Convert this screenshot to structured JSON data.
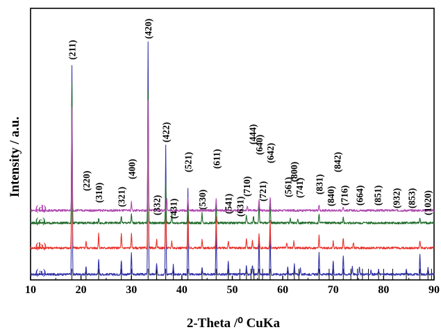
{
  "chart_data": {
    "type": "line",
    "title": "",
    "xlabel": "2-Theta /⁰ CuKa",
    "ylabel": "Intensity / a.u.",
    "xlim": [
      10,
      90
    ],
    "xticks": [
      "10",
      "20",
      "30",
      "40",
      "50",
      "60",
      "70",
      "80",
      "90"
    ],
    "yticks": false,
    "grid": false,
    "series": [
      {
        "name": "(a)",
        "color": "#3333a8",
        "offset": 0,
        "peaks": [
          [
            18.2,
            300
          ],
          [
            21.0,
            10
          ],
          [
            23.5,
            22
          ],
          [
            28.0,
            20
          ],
          [
            30.0,
            30
          ],
          [
            33.3,
            335
          ],
          [
            35.0,
            15
          ],
          [
            36.8,
            185
          ],
          [
            38.3,
            14
          ],
          [
            41.2,
            125
          ],
          [
            44.0,
            10
          ],
          [
            46.8,
            68
          ],
          [
            49.2,
            20
          ],
          [
            52.8,
            12
          ],
          [
            54.0,
            14
          ],
          [
            55.3,
            50
          ],
          [
            57.5,
            62
          ],
          [
            61.0,
            10
          ],
          [
            62.3,
            14
          ],
          [
            63.5,
            8
          ],
          [
            67.2,
            32
          ],
          [
            70.0,
            20
          ],
          [
            72.0,
            28
          ],
          [
            73.8,
            12
          ],
          [
            75.2,
            10
          ],
          [
            77.5,
            6
          ],
          [
            79.0,
            8
          ],
          [
            84.5,
            6
          ],
          [
            87.2,
            28
          ],
          [
            88.8,
            10
          ]
        ]
      },
      {
        "name": "(b)",
        "color": "#e8302a",
        "offset": 38,
        "peaks": [
          [
            18.2,
            210
          ],
          [
            21.0,
            10
          ],
          [
            23.5,
            20
          ],
          [
            28.0,
            20
          ],
          [
            30.0,
            20
          ],
          [
            33.3,
            210
          ],
          [
            35.0,
            12
          ],
          [
            36.8,
            90
          ],
          [
            38.0,
            10
          ],
          [
            41.2,
            55
          ],
          [
            44.0,
            12
          ],
          [
            46.8,
            45
          ],
          [
            49.2,
            10
          ],
          [
            52.8,
            14
          ],
          [
            54.0,
            10
          ],
          [
            55.3,
            20
          ],
          [
            57.5,
            38
          ],
          [
            60.8,
            8
          ],
          [
            62.2,
            10
          ],
          [
            67.2,
            18
          ],
          [
            70.0,
            10
          ],
          [
            72.0,
            14
          ],
          [
            74.0,
            8
          ],
          [
            87.2,
            10
          ]
        ]
      },
      {
        "name": "(c)",
        "color": "#1f6b2a",
        "offset": 74,
        "peaks": [
          [
            18.2,
            200
          ],
          [
            23.5,
            6
          ],
          [
            28.0,
            10
          ],
          [
            30.0,
            12
          ],
          [
            33.3,
            190
          ],
          [
            36.8,
            60
          ],
          [
            38.0,
            14
          ],
          [
            41.2,
            30
          ],
          [
            44.0,
            14
          ],
          [
            46.8,
            30
          ],
          [
            52.8,
            10
          ],
          [
            54.2,
            10
          ],
          [
            55.3,
            28
          ],
          [
            57.5,
            30
          ],
          [
            61.5,
            6
          ],
          [
            63.0,
            6
          ],
          [
            67.2,
            14
          ],
          [
            72.0,
            8
          ],
          [
            87.2,
            8
          ]
        ]
      },
      {
        "name": "(d)",
        "color": "#b04ab0",
        "offset": 92,
        "peaks": [
          [
            18.2,
            150
          ],
          [
            30.0,
            12
          ],
          [
            33.3,
            160
          ],
          [
            37.0,
            18
          ],
          [
            41.2,
            20
          ],
          [
            46.8,
            16
          ],
          [
            53.0,
            6
          ],
          [
            55.3,
            16
          ],
          [
            57.5,
            20
          ],
          [
            67.2,
            8
          ],
          [
            72.0,
            6
          ]
        ]
      }
    ],
    "reference_lines": [
      18.2,
      21.0,
      23.5,
      28.0,
      30.0,
      33.3,
      35.0,
      36.8,
      38.3,
      41.2,
      44.0,
      46.8,
      49.2,
      51.5,
      52.8,
      53.7,
      54.3,
      55.3,
      56.0,
      57.5,
      61.0,
      62.3,
      63.2,
      67.2,
      69.2,
      70.0,
      72.0,
      73.5,
      74.8,
      75.8,
      77.0,
      79.0,
      80.0,
      81.8,
      84.5,
      87.2,
      88.8,
      89.5
    ],
    "peak_labels": [
      {
        "text": "(211)",
        "x": 18.2
      },
      {
        "text": "(220)",
        "x": 21.0
      },
      {
        "text": "(310)",
        "x": 23.5
      },
      {
        "text": "(321)",
        "x": 28.0
      },
      {
        "text": "(400)",
        "x": 30.0
      },
      {
        "text": "(420)",
        "x": 33.3
      },
      {
        "text": "(332)",
        "x": 35.0
      },
      {
        "text": "(422)",
        "x": 36.8
      },
      {
        "text": "(431)",
        "x": 38.3
      },
      {
        "text": "(521)",
        "x": 41.2
      },
      {
        "text": "(530)",
        "x": 44.0
      },
      {
        "text": "(611)",
        "x": 46.8
      },
      {
        "text": "(541)",
        "x": 49.2
      },
      {
        "text": "(631)",
        "x": 51.5
      },
      {
        "text": "(710)",
        "x": 52.8
      },
      {
        "text": "(444)",
        "x": 54.0
      },
      {
        "text": "(640)",
        "x": 55.3
      },
      {
        "text": "(721)",
        "x": 56.0
      },
      {
        "text": "(642)",
        "x": 57.5
      },
      {
        "text": "(561)",
        "x": 61.0
      },
      {
        "text": "(800)",
        "x": 62.2
      },
      {
        "text": "(741)",
        "x": 63.3
      },
      {
        "text": "(831)",
        "x": 67.2
      },
      {
        "text": "(840)",
        "x": 69.5
      },
      {
        "text": "(842)",
        "x": 70.8
      },
      {
        "text": "(716)",
        "x": 72.2
      },
      {
        "text": "(664)",
        "x": 75.2
      },
      {
        "text": "(851)",
        "x": 78.8
      },
      {
        "text": "(932)",
        "x": 82.5
      },
      {
        "text": "(853)",
        "x": 85.5
      },
      {
        "text": "(1020)",
        "x": 88.7
      }
    ]
  }
}
